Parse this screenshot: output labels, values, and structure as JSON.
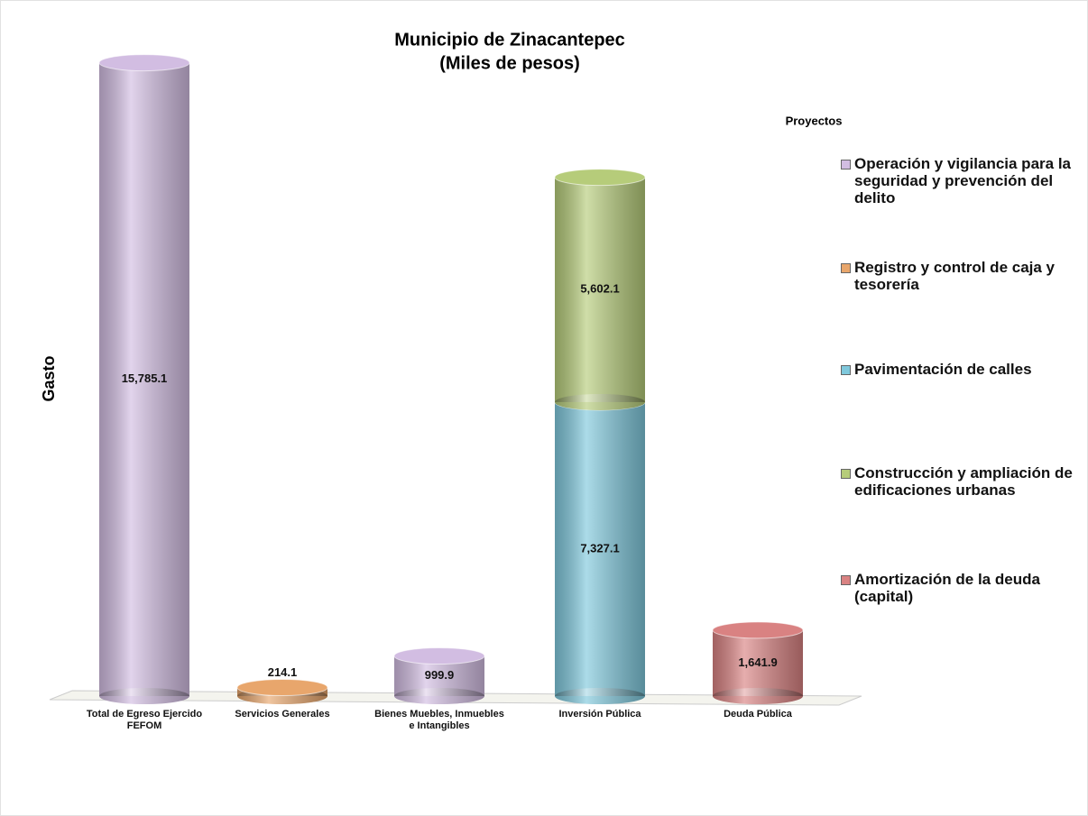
{
  "chart_data": {
    "type": "bar",
    "stacked": true,
    "title": "Municipio de Zinacantepec",
    "subtitle": "(Miles de pesos)",
    "y_label": "Gasto",
    "legend_title": "Proyectos",
    "legend": "right",
    "categories": [
      "Total de Egreso Ejercido FEFOM",
      "Servicios Generales",
      "Bienes Muebles, Inmuebles e Intangibles",
      "Inversión Pública",
      "Deuda Pública"
    ],
    "ylim": [
      0,
      16000
    ],
    "series": [
      {
        "name": "Operación y vigilancia para la seguridad y prevención del delito",
        "color": "#d2bde2",
        "values": [
          15785.1,
          null,
          999.9,
          null,
          null
        ],
        "value_labels": [
          "15,785.1",
          null,
          "999.9",
          null,
          null
        ]
      },
      {
        "name": "Registro y control de caja y tesorería",
        "color": "#e8a66c",
        "values": [
          null,
          214.1,
          null,
          null,
          null
        ],
        "value_labels": [
          null,
          "214.1",
          null,
          null,
          null
        ]
      },
      {
        "name": "Pavimentación de calles",
        "color": "#7fc8dc",
        "values": [
          null,
          null,
          null,
          7327.1,
          null
        ],
        "value_labels": [
          null,
          null,
          null,
          "7,327.1",
          null
        ]
      },
      {
        "name": "Construcción y ampliación de edificaciones urbanas",
        "color": "#b6cc7a",
        "values": [
          null,
          null,
          null,
          5602.1,
          null
        ],
        "value_labels": [
          null,
          null,
          null,
          "5,602.1",
          null
        ]
      },
      {
        "name": "Amortización de la deuda (capital)",
        "color": "#d98282",
        "values": [
          null,
          null,
          null,
          null,
          1641.9
        ],
        "value_labels": [
          null,
          null,
          null,
          null,
          "1,641.9"
        ]
      }
    ]
  }
}
